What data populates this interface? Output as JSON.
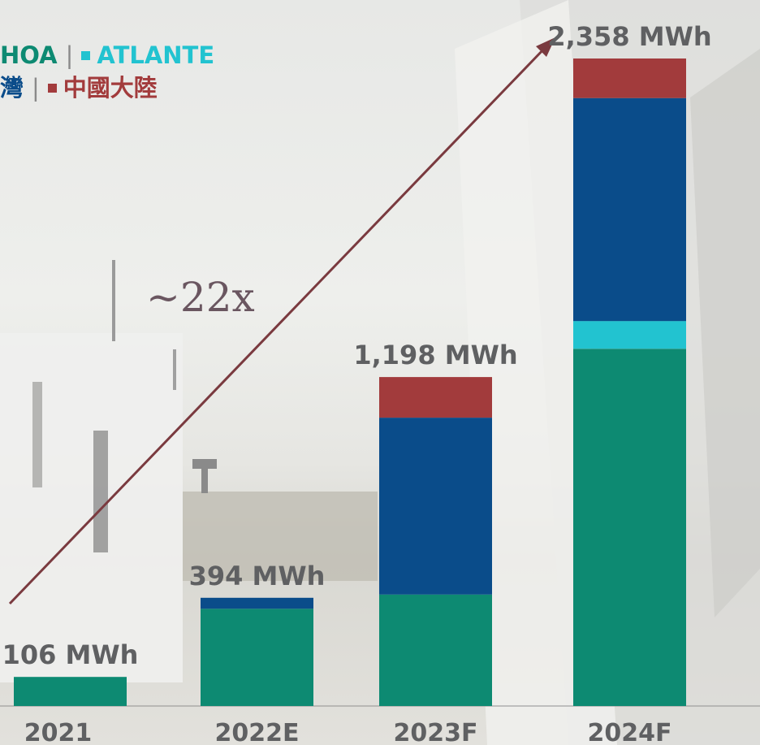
{
  "legend": {
    "row1": [
      {
        "label": "HOA",
        "text_color": "#0d8a72"
      },
      {
        "label": "ATLANTE",
        "swatch": "#22c3d0",
        "text_color": "#22c3d0"
      }
    ],
    "row2": [
      {
        "label": "灣",
        "text_color": "#0a4c8a"
      },
      {
        "label": "中國大陸",
        "swatch": "#a23b3c",
        "text_color": "#a23b3c"
      }
    ]
  },
  "annotation": {
    "growth_label": "~22x"
  },
  "colors": {
    "green": "#0d8a72",
    "cyan": "#22c3d0",
    "blue": "#0a4c8a",
    "red": "#a23b3c",
    "arrow": "#7a3a3f"
  },
  "chart_data": {
    "type": "bar",
    "stacked": true,
    "categories": [
      "2021",
      "2022E",
      "2023F",
      "2024F"
    ],
    "totals_labels": [
      "106 MWh",
      "394 MWh",
      "1,198 MWh",
      "2,358 MWh"
    ],
    "totals": [
      106,
      394,
      1198,
      2358
    ],
    "series": [
      {
        "name": "",
        "color": "#0d8a72",
        "values": [
          106,
          354,
          406,
          1301
        ]
      },
      {
        "name": "ATLANTE",
        "color": "#22c3d0",
        "values": [
          0,
          0,
          0,
          101
        ]
      },
      {
        "name": "",
        "color": "#0a4c8a",
        "values": [
          0,
          40,
          644,
          812
        ]
      },
      {
        "name": "中國大陸",
        "color": "#a23b3c",
        "values": [
          0,
          0,
          148,
          144
        ]
      }
    ],
    "ylim": [
      0,
      2358
    ],
    "grid": false,
    "legend_position": "top-left"
  }
}
